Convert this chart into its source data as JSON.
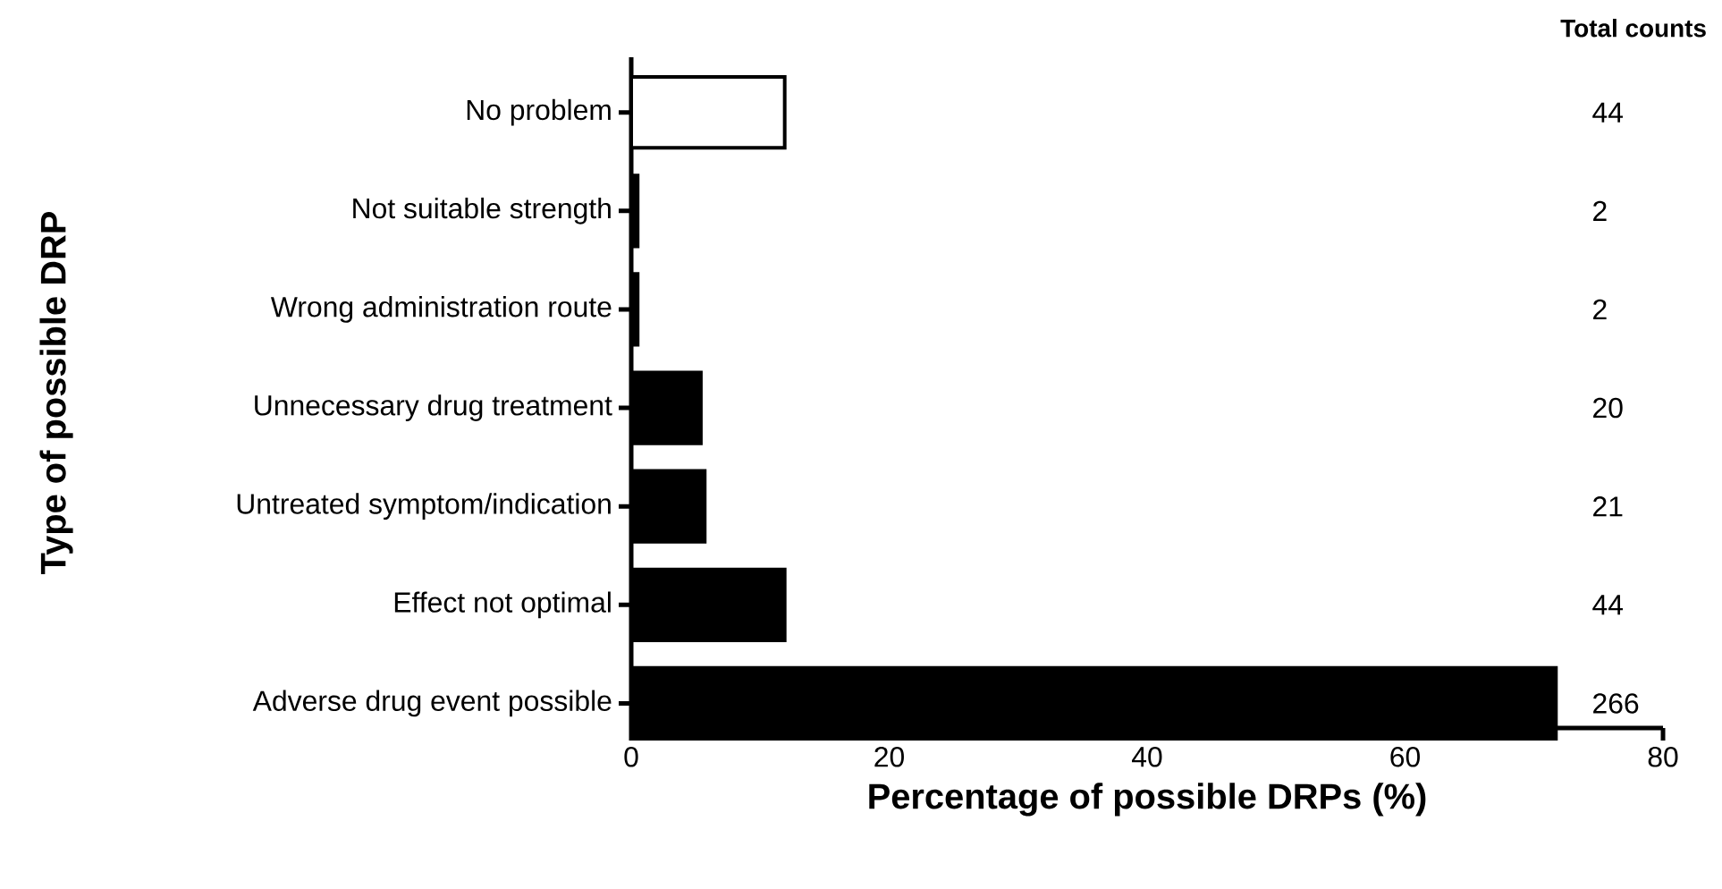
{
  "chart_data": {
    "type": "bar",
    "orientation": "horizontal",
    "xlabel": "Percentage of possible DRPs (%)",
    "ylabel": "Type of possible DRP",
    "categories": [
      "No problem",
      "Not suitable strength",
      "Wrong administration route",
      "Unnecessary drug treatment",
      "Untreated symptom/indication",
      "Effect not optimal",
      "Adverse drug event possible"
    ],
    "values": [
      11.9,
      0.5,
      0.5,
      5.4,
      5.7,
      11.9,
      71.7
    ],
    "colors": [
      "#ffffff",
      "#000000",
      "#000000",
      "#000000",
      "#000000",
      "#000000",
      "#000000"
    ],
    "annotations": [
      "Total counts",
      "44",
      "2",
      "2",
      "20",
      "21",
      "44",
      "266"
    ],
    "xlim": [
      0,
      80
    ],
    "xticks": [
      0,
      20,
      40,
      60,
      80
    ],
    "grid": false
  }
}
